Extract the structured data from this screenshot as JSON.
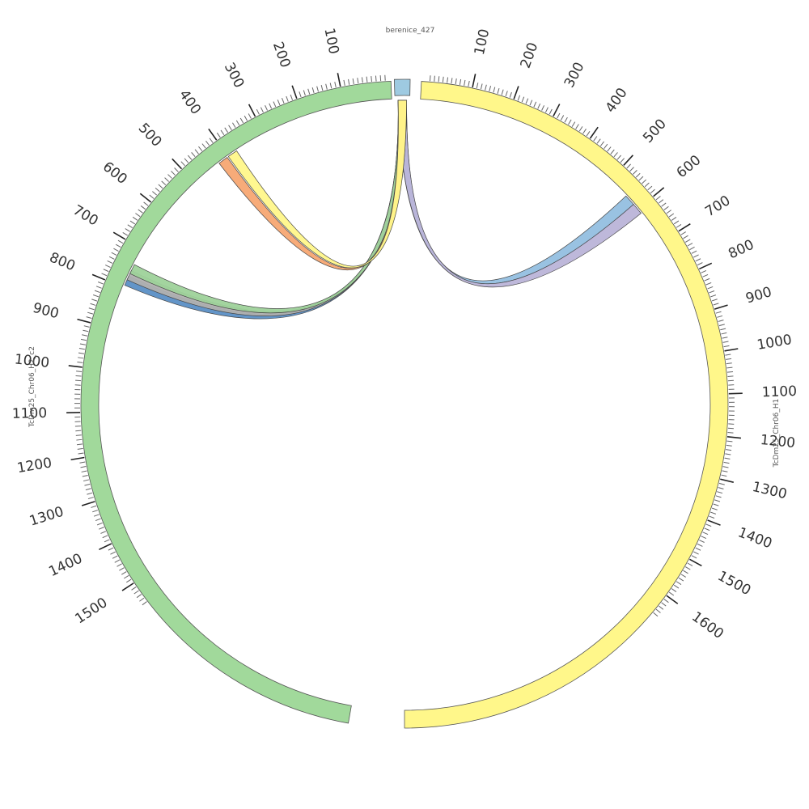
{
  "diagram": {
    "type": "circos",
    "segments": [
      {
        "id": "berenice",
        "label": "berenice_427",
        "color": "#9ecae1",
        "ticks": []
      },
      {
        "id": "h1",
        "label": "TcDm25_Chr06_H1",
        "color": "#fff78a",
        "length": 1650,
        "ticks": [
          "100",
          "200",
          "300",
          "400",
          "500",
          "600",
          "700",
          "800",
          "900",
          "1000",
          "1100",
          "1200",
          "1300",
          "1400",
          "1500",
          "1600"
        ]
      },
      {
        "id": "h2",
        "label": "TcDm25_Chr06_H2_c2",
        "color": "#a1d99b",
        "length": 1550,
        "ticks": [
          "100",
          "200",
          "300",
          "400",
          "500",
          "600",
          "700",
          "800",
          "900",
          "1000",
          "1100",
          "1200",
          "1300",
          "1400",
          "1500"
        ]
      }
    ],
    "links": [
      {
        "from": "berenice",
        "to": "h1",
        "to_pos": 570,
        "color": "#94bfe0"
      },
      {
        "from": "berenice",
        "to": "h1",
        "to_pos": 598,
        "color": "#bab4d8"
      },
      {
        "from": "berenice",
        "to": "h2",
        "to_pos": 782,
        "color": "#5b8fc5"
      },
      {
        "from": "berenice",
        "to": "h2",
        "to_pos": 768,
        "color": "#b0b0b0"
      },
      {
        "from": "berenice",
        "to": "h2",
        "to_pos": 752,
        "color": "#9ed29a"
      },
      {
        "from": "berenice",
        "to": "h2",
        "to_pos": 415,
        "color": "#f7a772"
      },
      {
        "from": "berenice",
        "to": "h2",
        "to_pos": 388,
        "color": "#fff78a"
      }
    ]
  }
}
